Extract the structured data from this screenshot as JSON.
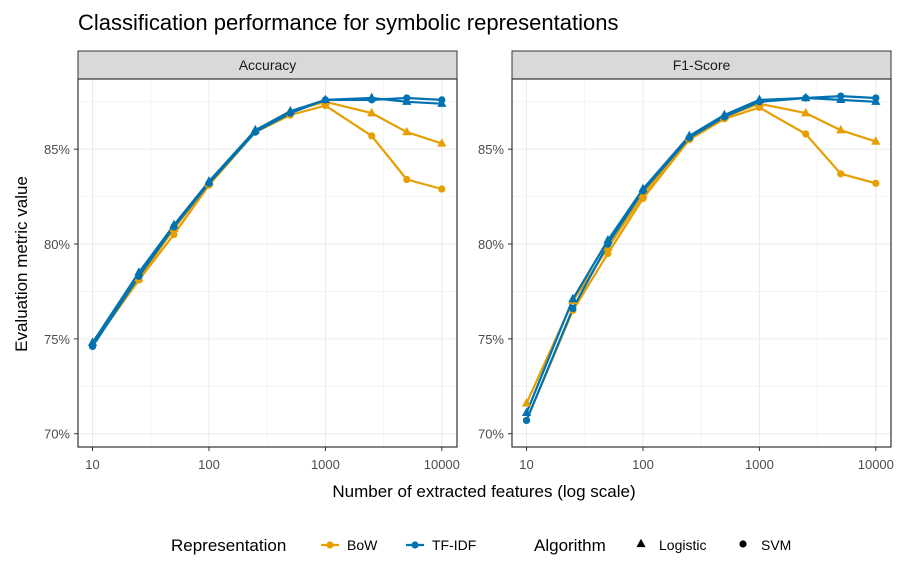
{
  "chart_data": {
    "type": "line",
    "title": "Classification performance for symbolic representations",
    "xlabel": "Number of extracted features (log scale)",
    "ylabel": "Evaluation metric value",
    "x_scale": "log10",
    "xlim": [
      7.5,
      13500
    ],
    "ylim": [
      0.693,
      0.887
    ],
    "x_ticks": [
      10,
      100,
      1000,
      10000
    ],
    "x_tick_labels": [
      "10",
      "100",
      "1000",
      "10000"
    ],
    "y_ticks": [
      0.7,
      0.75,
      0.8,
      0.85
    ],
    "y_tick_labels": [
      "70%",
      "75%",
      "80%",
      "85%"
    ],
    "grid": true,
    "legend_position": "bottom",
    "legend": {
      "color_title": "Representation",
      "shape_title": "Algorithm",
      "color_entries": [
        {
          "label": "BoW",
          "color": "#E69F00"
        },
        {
          "label": "TF-IDF",
          "color": "#0072B2"
        }
      ],
      "shape_entries": [
        {
          "label": "Logistic",
          "shape": "triangle"
        },
        {
          "label": "SVM",
          "shape": "circle"
        }
      ]
    },
    "x": [
      10,
      25,
      50,
      100,
      250,
      500,
      1000,
      2500,
      5000,
      10000
    ],
    "panels": [
      {
        "label": "Accuracy",
        "series": [
          {
            "representation": "BoW",
            "algorithm": "Logistic",
            "values": [
              0.748,
              0.782,
              0.808,
              0.832,
              0.86,
              0.87,
              0.875,
              0.869,
              0.859,
              0.853
            ]
          },
          {
            "representation": "BoW",
            "algorithm": "SVM",
            "values": [
              0.747,
              0.781,
              0.805,
              0.831,
              0.859,
              0.868,
              0.873,
              0.857,
              0.834,
              0.829
            ]
          },
          {
            "representation": "TF-IDF",
            "algorithm": "Logistic",
            "values": [
              0.748,
              0.785,
              0.81,
              0.833,
              0.86,
              0.87,
              0.876,
              0.877,
              0.875,
              0.874
            ]
          },
          {
            "representation": "TF-IDF",
            "algorithm": "SVM",
            "values": [
              0.746,
              0.783,
              0.809,
              0.832,
              0.859,
              0.869,
              0.876,
              0.876,
              0.877,
              0.876
            ]
          }
        ]
      },
      {
        "label": "F1-Score",
        "series": [
          {
            "representation": "BoW",
            "algorithm": "Logistic",
            "values": [
              0.716,
              0.77,
              0.798,
              0.826,
              0.856,
              0.867,
              0.874,
              0.869,
              0.86,
              0.854
            ]
          },
          {
            "representation": "BoW",
            "algorithm": "SVM",
            "values": [
              0.707,
              0.765,
              0.795,
              0.824,
              0.855,
              0.866,
              0.872,
              0.858,
              0.837,
              0.832
            ]
          },
          {
            "representation": "TF-IDF",
            "algorithm": "Logistic",
            "values": [
              0.711,
              0.771,
              0.802,
              0.829,
              0.857,
              0.868,
              0.876,
              0.877,
              0.876,
              0.875
            ]
          },
          {
            "representation": "TF-IDF",
            "algorithm": "SVM",
            "values": [
              0.707,
              0.766,
              0.8,
              0.828,
              0.856,
              0.867,
              0.875,
              0.877,
              0.878,
              0.877
            ]
          }
        ]
      }
    ]
  }
}
